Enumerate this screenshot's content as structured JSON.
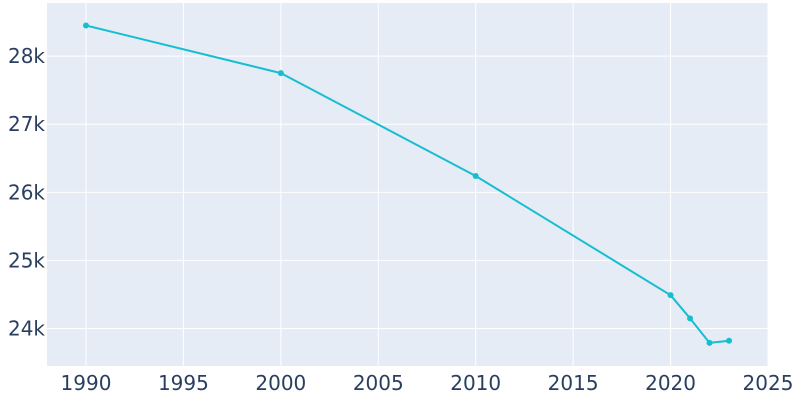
{
  "chart_data": {
    "type": "line",
    "title": "",
    "xlabel": "",
    "ylabel": "",
    "xlim": [
      1988,
      2025
    ],
    "ylim": [
      23450,
      28780
    ],
    "x_ticks": [
      1990,
      1995,
      2000,
      2005,
      2010,
      2015,
      2020,
      2025
    ],
    "y_ticks": [
      24000,
      25000,
      26000,
      27000,
      28000
    ],
    "x_tick_labels": [
      "1990",
      "1995",
      "2000",
      "2005",
      "2010",
      "2015",
      "2020",
      "2025"
    ],
    "y_tick_labels": [
      "24k",
      "25k",
      "26k",
      "27k",
      "28k"
    ],
    "grid": true,
    "series": [
      {
        "x": [
          1990,
          2000,
          2010,
          2020,
          2021,
          2022,
          2023
        ],
        "y": [
          28450,
          27750,
          26240,
          24490,
          24150,
          23790,
          23820
        ],
        "color": "#17becf"
      }
    ],
    "colors": {
      "plot_background": "#e5ecf6",
      "grid": "#ffffff",
      "tick_text": "#2a3f5f",
      "line": "#17becf"
    }
  }
}
